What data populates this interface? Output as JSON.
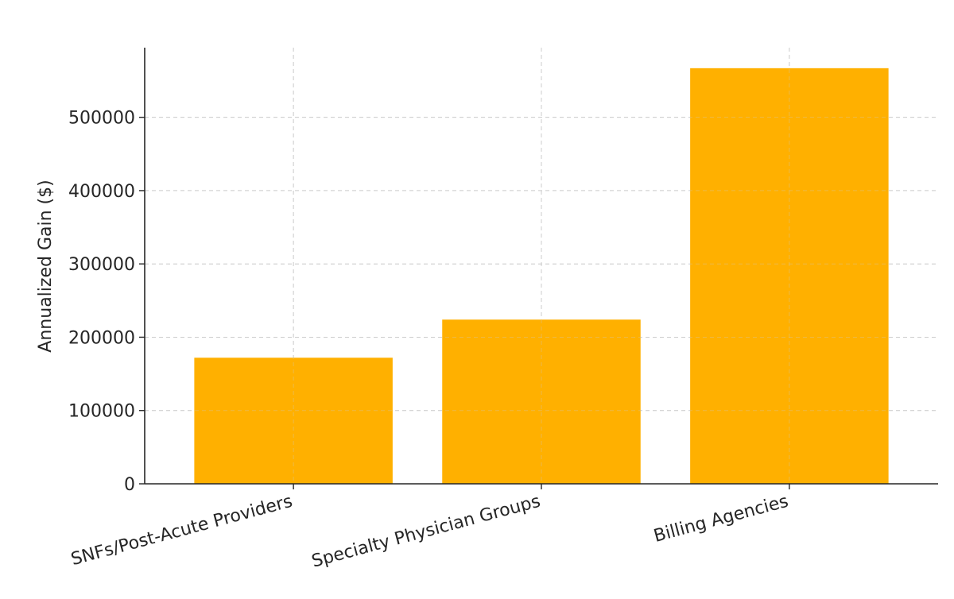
{
  "chart_data": {
    "type": "bar",
    "categories": [
      "SNFs/Post-Acute Providers",
      "Specialty Physician Groups",
      "Billing Agencies"
    ],
    "values": [
      172000,
      224000,
      567000
    ],
    "title": "",
    "xlabel": "",
    "ylabel": "Annualized Gain ($)",
    "ylim": [
      0,
      595000
    ],
    "yticks": [
      0,
      100000,
      200000,
      300000,
      400000,
      500000
    ],
    "ytick_labels": [
      "0",
      "100000",
      "200000",
      "300000",
      "400000",
      "500000"
    ],
    "grid": true,
    "bar_color": "#FFB000"
  }
}
